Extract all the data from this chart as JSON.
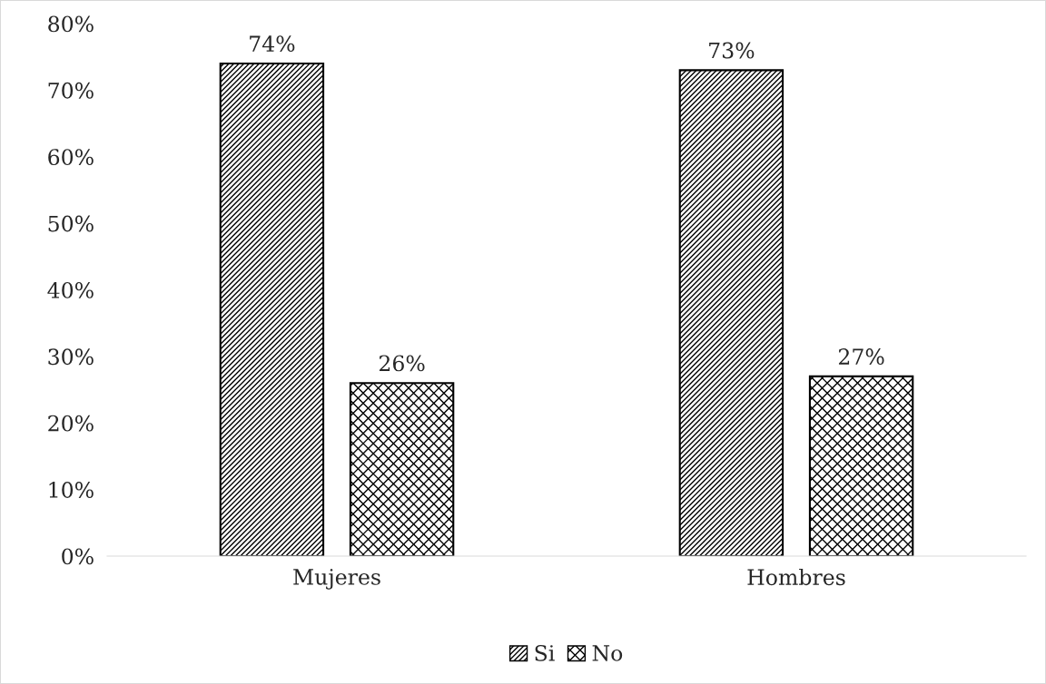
{
  "chart_data": {
    "type": "bar",
    "categories": [
      "Mujeres",
      "Hombres"
    ],
    "series": [
      {
        "name": "Si",
        "color": "#000000",
        "values": [
          74,
          73
        ],
        "value_labels": [
          "74%",
          "73%"
        ]
      },
      {
        "name": "No",
        "color": "#000000",
        "values": [
          26,
          27
        ],
        "value_labels": [
          "26%",
          "27%"
        ]
      }
    ],
    "ylim": [
      0,
      80
    ],
    "yticks": [
      {
        "value": 0,
        "label": "0%"
      },
      {
        "value": 10,
        "label": "10%"
      },
      {
        "value": 20,
        "label": "20%"
      },
      {
        "value": 30,
        "label": "30%"
      },
      {
        "value": 40,
        "label": "40%"
      },
      {
        "value": 50,
        "label": "50%"
      },
      {
        "value": 60,
        "label": "60%"
      },
      {
        "value": 70,
        "label": "70%"
      },
      {
        "value": 80,
        "label": "80%"
      }
    ],
    "grid": false,
    "legend": "bottom"
  }
}
